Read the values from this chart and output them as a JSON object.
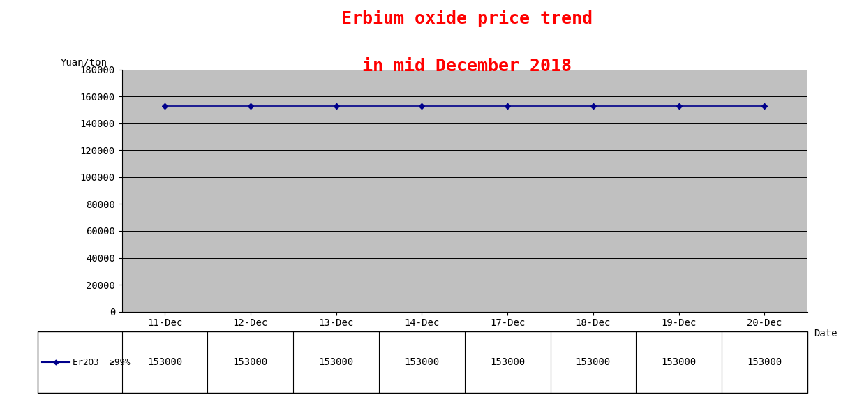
{
  "title_line1": "Erbium oxide price trend",
  "title_line2": "in mid December 2018",
  "title_color": "#ff0000",
  "title_fontsize": 18,
  "ylabel": "Yuan/ton",
  "xlabel": "Date",
  "categories": [
    "11-Dec",
    "12-Dec",
    "13-Dec",
    "14-Dec",
    "17-Dec",
    "18-Dec",
    "19-Dec",
    "20-Dec"
  ],
  "series_values": [
    153000,
    153000,
    153000,
    153000,
    153000,
    153000,
    153000,
    153000
  ],
  "series_color": "#00008b",
  "series_marker": "D",
  "series_markersize": 4,
  "series_linewidth": 1.2,
  "series_label": "Er2O3  ≥99%",
  "ylim": [
    0,
    180000
  ],
  "yticks": [
    0,
    20000,
    40000,
    60000,
    80000,
    100000,
    120000,
    140000,
    160000,
    180000
  ],
  "plot_bg_color": "#c0c0c0",
  "fig_bg_color": "#ffffff",
  "grid_color": "#000000",
  "grid_linewidth": 0.7,
  "table_values": [
    "153000",
    "153000",
    "153000",
    "153000",
    "153000",
    "153000",
    "153000",
    "153000"
  ]
}
